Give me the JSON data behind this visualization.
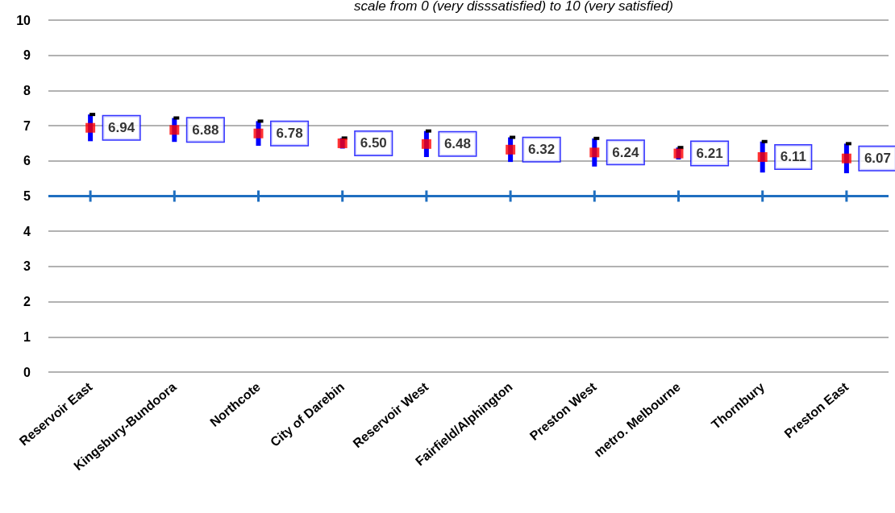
{
  "chart_data": {
    "type": "scatter",
    "subtitle": "scale from 0 (very disssatisfied) to 10 (very satisfied)",
    "categories": [
      "Reservoir East",
      "Kingsbury-Bundoora",
      "Northcote",
      "City of Darebin",
      "Reservoir West",
      "Fairfield/Alphington",
      "Preston West",
      "metro. Melbourne",
      "Thornbury",
      "Preston East"
    ],
    "values": [
      6.94,
      6.88,
      6.78,
      6.5,
      6.48,
      6.32,
      6.24,
      6.21,
      6.11,
      6.07
    ],
    "errors": [
      0.38,
      0.34,
      0.35,
      0.15,
      0.37,
      0.35,
      0.4,
      0.17,
      0.44,
      0.42
    ],
    "color": "#ff0000",
    "marker": "square",
    "value_labels": [
      "6.94",
      "6.88",
      "6.78",
      "6.50",
      "6.48",
      "6.32",
      "6.24",
      "6.21",
      "6.11",
      "6.07"
    ],
    "ylim": [
      0,
      10
    ],
    "yticks": [
      0,
      1,
      2,
      3,
      4,
      5,
      6,
      7,
      8,
      9,
      10
    ],
    "grid": "y",
    "ref_lines": [
      {
        "axis": "y",
        "value": 5,
        "color": "#1f6fc0"
      }
    ]
  }
}
